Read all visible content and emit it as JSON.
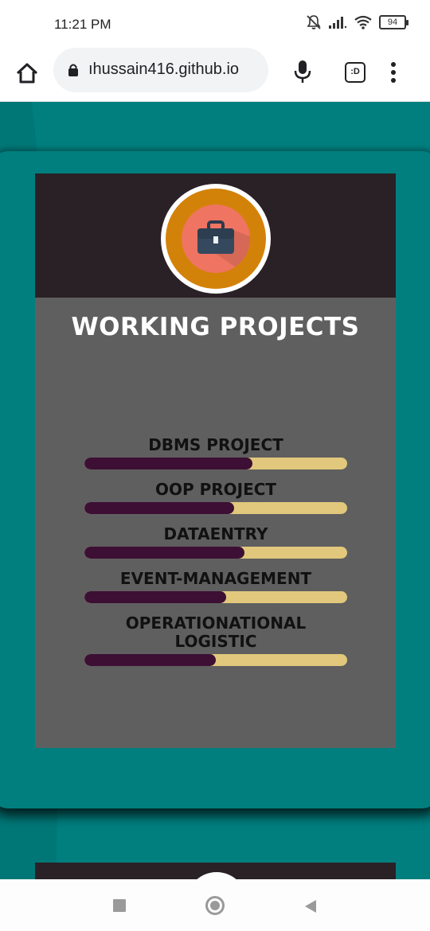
{
  "status_bar": {
    "time": "11:21 PM",
    "battery": "94",
    "icons": [
      "mute-icon",
      "signal-icon",
      "wifi-icon",
      "battery-icon"
    ]
  },
  "browser": {
    "url": "ıhussain416.github.io",
    "tab_label": ":D",
    "icons": [
      "home-icon",
      "lock-icon",
      "mic-icon",
      "tab-switcher-icon",
      "menu-icon"
    ]
  },
  "card": {
    "title": "WORKING PROJECTS",
    "icon": "briefcase-icon",
    "projects": [
      {
        "name": "DBMS PROJECT",
        "progress": 0.64
      },
      {
        "name": "OOP PROJECT",
        "progress": 0.57
      },
      {
        "name": "DATAENTRY",
        "progress": 0.61
      },
      {
        "name": "EVENT-MANAGEMENT",
        "progress": 0.54
      },
      {
        "name": "OPERATIONATIONAL LOGISTIC",
        "progress": 0.5
      }
    ]
  },
  "colors": {
    "page_bg": "#017f7f",
    "card_top": "#2a2126",
    "card_body": "#5f5f5f",
    "bar_track": "#e1c87c",
    "bar_fill": "#3d0f34",
    "badge_ring": "#d38209",
    "badge_core": "#ef7461"
  },
  "nav_bar": {
    "icons": [
      "recent-apps-icon",
      "home-circle-icon",
      "back-icon"
    ]
  }
}
